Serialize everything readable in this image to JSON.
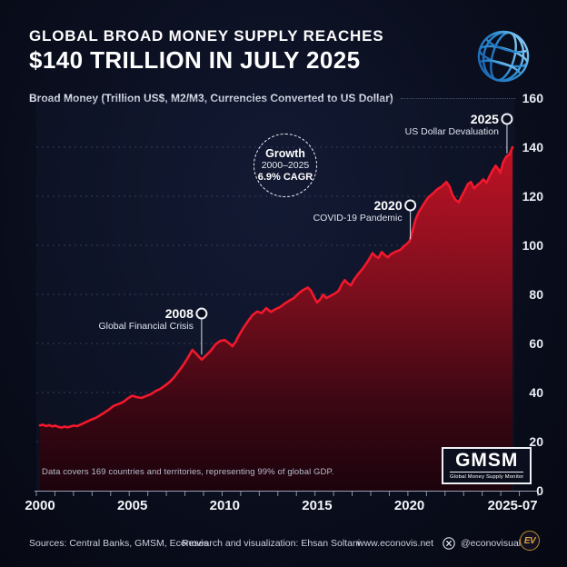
{
  "header": {
    "title_line1": "GLOBAL BROAD MONEY SUPPLY REACHES",
    "title_line2": "$140 TRILLION IN JULY 2025",
    "subtitle": "Broad Money (Trillion US$, M2/M3, Currencies Converted to US Dollar)",
    "logo": "world-bank-globe"
  },
  "growth_badge": {
    "line1": "Growth",
    "line2": "2000–2025",
    "line3": "6.9% CAGR"
  },
  "chart_note": "Data covers 169 countries and territories, representing 99% of global GDP.",
  "gmsm_badge": {
    "title": "GMSM",
    "subtitle": "Global Money Supply Monitor"
  },
  "footer": {
    "sources": "Sources: Central Banks, GMSM, Econovis",
    "credit": "Research and visualization: Ehsan Soltani",
    "website": "www.econovis.net",
    "handle": "@econovisuals",
    "logo_text": "EV"
  },
  "chart_data": {
    "type": "area",
    "title": "Global broad money supply, trillion US$ (M2/M3, currencies converted to US dollar)",
    "x_range": [
      2000,
      2025.583
    ],
    "y_range": [
      0,
      160
    ],
    "yticks": [
      0,
      20,
      40,
      60,
      80,
      100,
      120,
      140,
      160
    ],
    "xticks": [
      {
        "label": "2000",
        "year": 2000
      },
      {
        "label": "2005",
        "year": 2005
      },
      {
        "label": "2010",
        "year": 2010
      },
      {
        "label": "2015",
        "year": 2015
      },
      {
        "label": "2020",
        "year": 2020
      },
      {
        "label": "2025-07",
        "year": 2025.583
      }
    ],
    "grid": "dotted",
    "legend": "none",
    "line_color": "#f3182c",
    "area_gradient": [
      "#c01325",
      "#7c0e1d",
      "#3b0713",
      "#1c030c"
    ],
    "annotations": [
      {
        "year_label": "2008",
        "note": "Global Financial Crisis",
        "x_year": 2008.75,
        "marker_value": 72.2,
        "pointer_to_value": 55.5
      },
      {
        "year_label": "2020",
        "note": "COVID-19 Pandemic",
        "x_year": 2020.05,
        "marker_value": 116.3,
        "pointer_to_value": 102.5
      },
      {
        "year_label": "2025",
        "note": "US Dollar Devaluation",
        "x_year": 2025.28,
        "marker_value": 151.5,
        "pointer_to_value": 137.5
      }
    ],
    "points": [
      [
        2000.0,
        26.6
      ],
      [
        2000.17,
        26.9
      ],
      [
        2000.33,
        26.3
      ],
      [
        2000.5,
        26.7
      ],
      [
        2000.67,
        26.2
      ],
      [
        2000.83,
        26.5
      ],
      [
        2001.0,
        26.0
      ],
      [
        2001.17,
        25.7
      ],
      [
        2001.33,
        26.1
      ],
      [
        2001.5,
        25.8
      ],
      [
        2001.67,
        26.2
      ],
      [
        2001.83,
        26.5
      ],
      [
        2002.0,
        26.3
      ],
      [
        2002.25,
        27.1
      ],
      [
        2002.5,
        28.0
      ],
      [
        2002.75,
        28.9
      ],
      [
        2003.0,
        29.6
      ],
      [
        2003.25,
        30.7
      ],
      [
        2003.5,
        31.9
      ],
      [
        2003.75,
        33.2
      ],
      [
        2004.0,
        34.6
      ],
      [
        2004.25,
        35.3
      ],
      [
        2004.5,
        36.1
      ],
      [
        2004.75,
        37.6
      ],
      [
        2005.0,
        38.7
      ],
      [
        2005.25,
        38.1
      ],
      [
        2005.5,
        37.8
      ],
      [
        2005.75,
        38.6
      ],
      [
        2006.0,
        39.3
      ],
      [
        2006.25,
        40.6
      ],
      [
        2006.5,
        41.4
      ],
      [
        2006.75,
        42.7
      ],
      [
        2007.0,
        44.2
      ],
      [
        2007.25,
        46.1
      ],
      [
        2007.5,
        48.6
      ],
      [
        2007.75,
        51.2
      ],
      [
        2008.0,
        54.1
      ],
      [
        2008.25,
        57.4
      ],
      [
        2008.42,
        56.1
      ],
      [
        2008.58,
        54.8
      ],
      [
        2008.75,
        53.4
      ],
      [
        2009.0,
        55.2
      ],
      [
        2009.25,
        57.1
      ],
      [
        2009.5,
        59.6
      ],
      [
        2009.75,
        61.0
      ],
      [
        2010.0,
        61.4
      ],
      [
        2010.25,
        60.0
      ],
      [
        2010.42,
        58.9
      ],
      [
        2010.58,
        60.5
      ],
      [
        2010.75,
        63.0
      ],
      [
        2011.0,
        66.2
      ],
      [
        2011.25,
        69.0
      ],
      [
        2011.5,
        71.5
      ],
      [
        2011.75,
        73.0
      ],
      [
        2012.0,
        72.4
      ],
      [
        2012.25,
        74.4
      ],
      [
        2012.5,
        72.9
      ],
      [
        2012.75,
        74.0
      ],
      [
        2013.0,
        74.8
      ],
      [
        2013.25,
        76.3
      ],
      [
        2013.5,
        77.5
      ],
      [
        2013.75,
        78.5
      ],
      [
        2014.0,
        80.4
      ],
      [
        2014.25,
        81.8
      ],
      [
        2014.5,
        82.8
      ],
      [
        2014.67,
        81.5
      ],
      [
        2014.83,
        79.0
      ],
      [
        2015.0,
        76.7
      ],
      [
        2015.17,
        78.0
      ],
      [
        2015.33,
        79.9
      ],
      [
        2015.5,
        78.5
      ],
      [
        2015.75,
        79.5
      ],
      [
        2016.0,
        80.5
      ],
      [
        2016.17,
        81.5
      ],
      [
        2016.33,
        84.0
      ],
      [
        2016.5,
        85.8
      ],
      [
        2016.67,
        84.5
      ],
      [
        2016.83,
        83.7
      ],
      [
        2017.0,
        86.0
      ],
      [
        2017.25,
        88.5
      ],
      [
        2017.5,
        90.8
      ],
      [
        2017.75,
        93.5
      ],
      [
        2018.0,
        96.8
      ],
      [
        2018.17,
        95.5
      ],
      [
        2018.33,
        94.9
      ],
      [
        2018.5,
        97.3
      ],
      [
        2018.67,
        96.0
      ],
      [
        2018.83,
        95.1
      ],
      [
        2019.0,
        96.4
      ],
      [
        2019.25,
        97.4
      ],
      [
        2019.5,
        98.1
      ],
      [
        2019.75,
        99.9
      ],
      [
        2020.0,
        101.6
      ],
      [
        2020.17,
        106.0
      ],
      [
        2020.33,
        110.5
      ],
      [
        2020.5,
        113.5
      ],
      [
        2020.67,
        115.5
      ],
      [
        2020.83,
        117.5
      ],
      [
        2021.0,
        119.4
      ],
      [
        2021.25,
        121.0
      ],
      [
        2021.5,
        122.8
      ],
      [
        2021.75,
        124.0
      ],
      [
        2022.0,
        125.8
      ],
      [
        2022.17,
        124.0
      ],
      [
        2022.33,
        120.5
      ],
      [
        2022.5,
        118.5
      ],
      [
        2022.67,
        117.6
      ],
      [
        2022.83,
        120.0
      ],
      [
        2023.0,
        122.5
      ],
      [
        2023.17,
        125.0
      ],
      [
        2023.33,
        125.8
      ],
      [
        2023.5,
        123.2
      ],
      [
        2023.67,
        124.5
      ],
      [
        2023.83,
        125.5
      ],
      [
        2024.0,
        126.9
      ],
      [
        2024.17,
        125.5
      ],
      [
        2024.33,
        128.0
      ],
      [
        2024.5,
        130.5
      ],
      [
        2024.67,
        132.5
      ],
      [
        2024.83,
        130.8
      ],
      [
        2024.92,
        129.6
      ],
      [
        2025.08,
        134.0
      ],
      [
        2025.25,
        136.2
      ],
      [
        2025.42,
        137.2
      ],
      [
        2025.583,
        140.0
      ]
    ]
  }
}
